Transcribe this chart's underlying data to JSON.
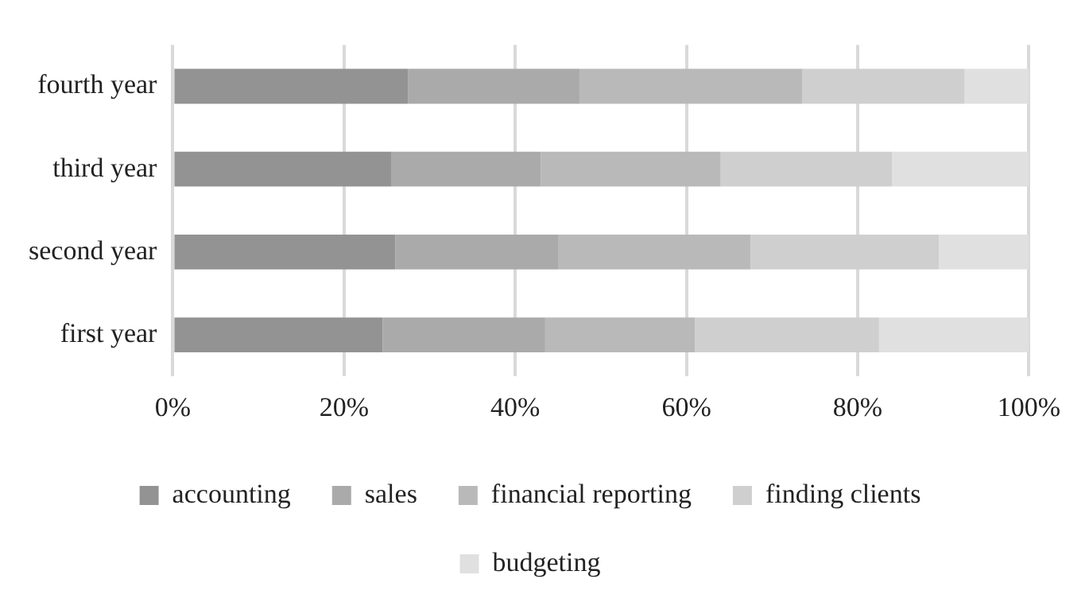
{
  "chart_data": {
    "type": "bar",
    "orientation": "horizontal",
    "stacked": true,
    "categories": [
      "fourth year",
      "third year",
      "second year",
      "first year"
    ],
    "series": [
      {
        "name": "accounting",
        "color": "#939393",
        "values": [
          27.5,
          25.5,
          26,
          24.5
        ]
      },
      {
        "name": "sales",
        "color": "#aaaaaa",
        "values": [
          20,
          17.5,
          19,
          19
        ]
      },
      {
        "name": "financial reporting",
        "color": "#b9b9b9",
        "values": [
          26,
          21,
          22.5,
          17.5
        ]
      },
      {
        "name": "finding clients",
        "color": "#cfcfcf",
        "values": [
          19,
          20,
          22,
          21.5
        ]
      },
      {
        "name": "budgeting",
        "color": "#e0e0e0",
        "values": [
          7.5,
          16,
          10.5,
          17.5
        ]
      }
    ],
    "xlim": [
      0,
      100
    ],
    "xticks": [
      {
        "value": 0,
        "label": "0%"
      },
      {
        "value": 20,
        "label": "20%"
      },
      {
        "value": 40,
        "label": "40%"
      },
      {
        "value": 60,
        "label": "60%"
      },
      {
        "value": 80,
        "label": "80%"
      },
      {
        "value": 100,
        "label": "100%"
      }
    ],
    "grid": "x",
    "legend": "bottom"
  }
}
